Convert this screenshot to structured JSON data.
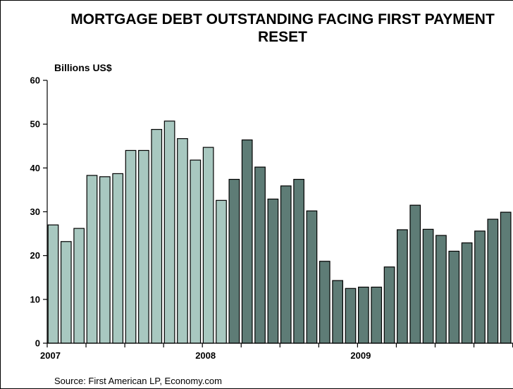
{
  "title_line1": "MORTGAGE DEBT OUTSTANDING FACING FIRST PAYMENT",
  "title_line2": "RESET",
  "unit_label": "Billions US$",
  "source": "Source: First American LP, Economy.com",
  "colors": {
    "light_bar": "#a8c8c0",
    "dark_bar": "#5e7c76",
    "bar_edge": "#000000",
    "axis": "#000000"
  },
  "chart_data": {
    "type": "bar",
    "title": "MORTGAGE DEBT OUTSTANDING FACING FIRST PAYMENT RESET",
    "ylabel": "Billions US$",
    "ylim": [
      0,
      60
    ],
    "y_ticks": [
      0,
      10,
      20,
      30,
      40,
      50,
      60
    ],
    "x_tick_labels": [
      {
        "label": "2007",
        "bar_index": 0
      },
      {
        "label": "2008",
        "bar_index": 12
      },
      {
        "label": "2009",
        "bar_index": 24
      }
    ],
    "series": [
      {
        "color": "#a8c8c0",
        "start_index": 0,
        "values": [
          27,
          23.2,
          26.2,
          38.3,
          38,
          38.7,
          44,
          44,
          48.8,
          50.7,
          46.7,
          41.8,
          44.7,
          32.6
        ]
      },
      {
        "color": "#5e7c76",
        "start_index": 14,
        "values": [
          37.4,
          46.4,
          40.2,
          32.9,
          35.9,
          37.4,
          30.2,
          18.7,
          14.3,
          12.5,
          12.8,
          12.8,
          17.4,
          25.9,
          31.5,
          26,
          24.6,
          21,
          22.9,
          25.6,
          28.3,
          29.9
        ]
      }
    ]
  }
}
